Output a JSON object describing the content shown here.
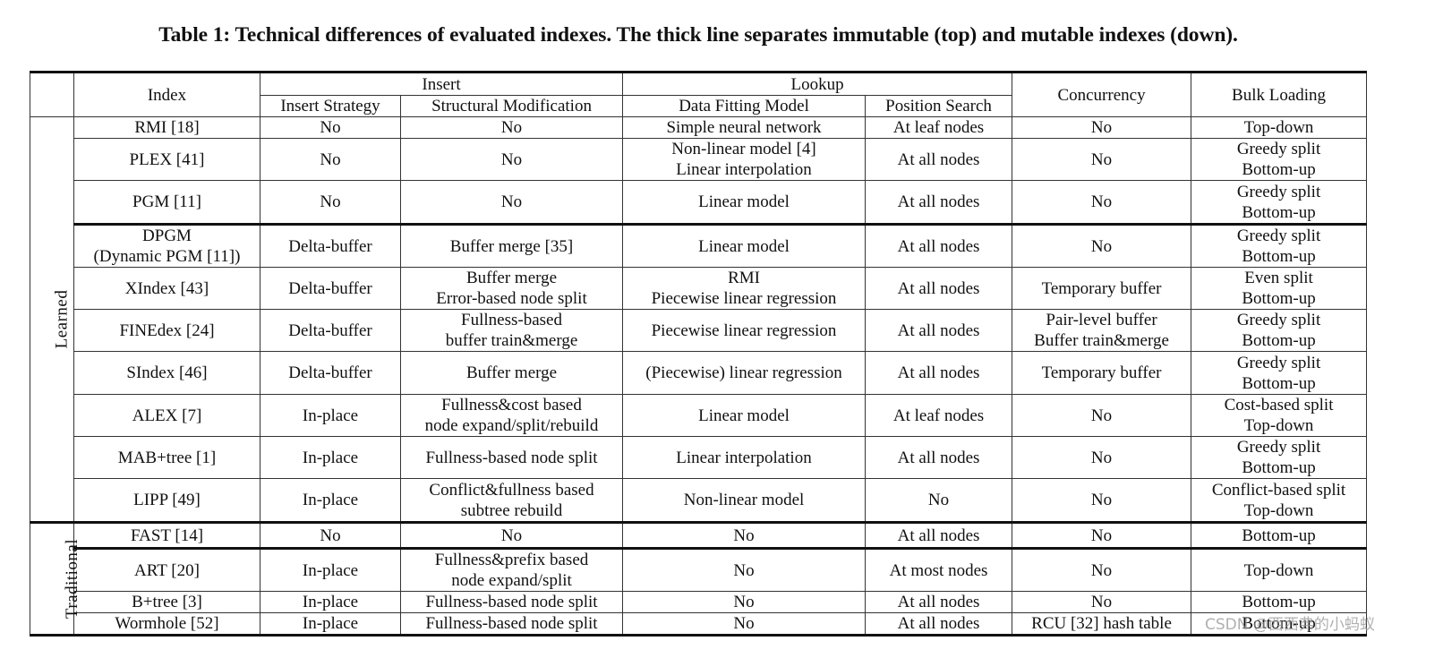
{
  "caption": "Table 1: Technical differences of evaluated indexes. The thick line separates immutable (top) and mutable indexes (down).",
  "header": {
    "index": "Index",
    "insert_group": "Insert",
    "insert_strategy": "Insert Strategy",
    "structural_modification": "Structural Modification",
    "lookup_group": "Lookup",
    "data_fitting_model": "Data Fitting Model",
    "position_search": "Position Search",
    "concurrency": "Concurrency",
    "bulk_loading": "Bulk Loading"
  },
  "groups": {
    "learned": "Learned",
    "traditional": "Traditional"
  },
  "rows": [
    {
      "index": [
        "RMI [18]"
      ],
      "insert_strategy": [
        "No"
      ],
      "structural_modification": [
        "No"
      ],
      "data_fitting_model": [
        "Simple neural network"
      ],
      "position_search": [
        "At leaf nodes"
      ],
      "concurrency": [
        "No"
      ],
      "bulk_loading": [
        "Top-down"
      ]
    },
    {
      "index": [
        "PLEX [41]"
      ],
      "insert_strategy": [
        "No"
      ],
      "structural_modification": [
        "No"
      ],
      "data_fitting_model": [
        "Non-linear model [4]",
        "Linear interpolation"
      ],
      "position_search": [
        "At all nodes"
      ],
      "concurrency": [
        "No"
      ],
      "bulk_loading": [
        "Greedy split",
        "Bottom-up"
      ]
    },
    {
      "index": [
        "PGM [11]"
      ],
      "insert_strategy": [
        "No"
      ],
      "structural_modification": [
        "No"
      ],
      "data_fitting_model": [
        "Linear model"
      ],
      "position_search": [
        "At all nodes"
      ],
      "concurrency": [
        "No"
      ],
      "bulk_loading": [
        "Greedy split",
        "Bottom-up"
      ]
    },
    {
      "index": [
        "DPGM",
        "(Dynamic PGM [11])"
      ],
      "insert_strategy": [
        "Delta-buffer"
      ],
      "structural_modification": [
        "Buffer merge [35]"
      ],
      "data_fitting_model": [
        "Linear model"
      ],
      "position_search": [
        "At all nodes"
      ],
      "concurrency": [
        "No"
      ],
      "bulk_loading": [
        "Greedy split",
        "Bottom-up"
      ]
    },
    {
      "index": [
        "XIndex [43]"
      ],
      "insert_strategy": [
        "Delta-buffer"
      ],
      "structural_modification": [
        "Buffer merge",
        "Error-based node split"
      ],
      "data_fitting_model": [
        "RMI",
        "Piecewise linear regression"
      ],
      "position_search": [
        "At all nodes"
      ],
      "concurrency": [
        "Temporary buffer"
      ],
      "bulk_loading": [
        "Even split",
        "Bottom-up"
      ]
    },
    {
      "index": [
        "FINEdex [24]"
      ],
      "insert_strategy": [
        "Delta-buffer"
      ],
      "structural_modification": [
        "Fullness-based",
        "buffer train&merge"
      ],
      "data_fitting_model": [
        "Piecewise linear regression"
      ],
      "position_search": [
        "At all nodes"
      ],
      "concurrency": [
        "Pair-level buffer",
        "Buffer train&merge"
      ],
      "bulk_loading": [
        "Greedy split",
        "Bottom-up"
      ]
    },
    {
      "index": [
        "SIndex [46]"
      ],
      "insert_strategy": [
        "Delta-buffer"
      ],
      "structural_modification": [
        "Buffer merge"
      ],
      "data_fitting_model": [
        "(Piecewise) linear regression"
      ],
      "position_search": [
        "At all nodes"
      ],
      "concurrency": [
        "Temporary buffer"
      ],
      "bulk_loading": [
        "Greedy split",
        "Bottom-up"
      ]
    },
    {
      "index": [
        "ALEX [7]"
      ],
      "insert_strategy": [
        "In-place"
      ],
      "structural_modification": [
        "Fullness&cost based",
        "node expand/split/rebuild"
      ],
      "data_fitting_model": [
        "Linear model"
      ],
      "position_search": [
        "At leaf nodes"
      ],
      "concurrency": [
        "No"
      ],
      "bulk_loading": [
        "Cost-based split",
        "Top-down"
      ]
    },
    {
      "index": [
        "MAB+tree [1]"
      ],
      "insert_strategy": [
        "In-place"
      ],
      "structural_modification": [
        "Fullness-based node split"
      ],
      "data_fitting_model": [
        "Linear interpolation"
      ],
      "position_search": [
        "At all nodes"
      ],
      "concurrency": [
        "No"
      ],
      "bulk_loading": [
        "Greedy split",
        "Bottom-up"
      ]
    },
    {
      "index": [
        "LIPP [49]"
      ],
      "insert_strategy": [
        "In-place"
      ],
      "structural_modification": [
        "Conflict&fullness based",
        "subtree rebuild"
      ],
      "data_fitting_model": [
        "Non-linear model"
      ],
      "position_search": [
        "No"
      ],
      "concurrency": [
        "No"
      ],
      "bulk_loading": [
        "Conflict-based split",
        "Top-down"
      ]
    },
    {
      "index": [
        "FAST [14]"
      ],
      "insert_strategy": [
        "No"
      ],
      "structural_modification": [
        "No"
      ],
      "data_fitting_model": [
        "No"
      ],
      "position_search": [
        "At all nodes"
      ],
      "concurrency": [
        "No"
      ],
      "bulk_loading": [
        "Bottom-up"
      ]
    },
    {
      "index": [
        "ART [20]"
      ],
      "insert_strategy": [
        "In-place"
      ],
      "structural_modification": [
        "Fullness&prefix based",
        "node expand/split"
      ],
      "data_fitting_model": [
        "No"
      ],
      "position_search": [
        "At most nodes"
      ],
      "concurrency": [
        "No"
      ],
      "bulk_loading": [
        "Top-down"
      ]
    },
    {
      "index": [
        "B+tree [3]"
      ],
      "insert_strategy": [
        "In-place"
      ],
      "structural_modification": [
        "Fullness-based node split"
      ],
      "data_fitting_model": [
        "No"
      ],
      "position_search": [
        "At all nodes"
      ],
      "concurrency": [
        "No"
      ],
      "bulk_loading": [
        "Bottom-up"
      ]
    },
    {
      "index": [
        "Wormhole [52]"
      ],
      "insert_strategy": [
        "In-place"
      ],
      "structural_modification": [
        "Fullness-based node split"
      ],
      "data_fitting_model": [
        "No"
      ],
      "position_search": [
        "At all nodes"
      ],
      "concurrency": [
        "RCU [32] hash table"
      ],
      "bulk_loading": [
        "Bottom-up"
      ]
    }
  ],
  "watermark": "CSDN @西西弗的小蚂蚁"
}
